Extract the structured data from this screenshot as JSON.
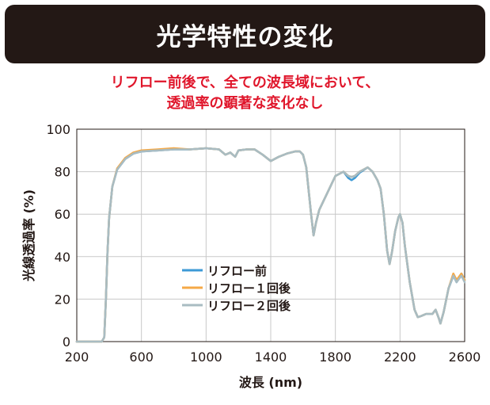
{
  "header": {
    "title": "光学特性の変化"
  },
  "subtitle": {
    "line1": "リフロー前後で、全ての波長域において、",
    "line2": "透過率の顕著な変化なし"
  },
  "colors": {
    "banner_bg": "#231815",
    "subtitle_text": "#e0162b",
    "series_before": "#3d9ad6",
    "series_one": "#f5a947",
    "series_two": "#a9bcc2"
  },
  "chart_data": {
    "type": "line",
    "title": "",
    "xlabel": "波長 (nm)",
    "ylabel": "光線透過率 (%)",
    "xlim": [
      200,
      2600
    ],
    "ylim": [
      0,
      100
    ],
    "x_ticks": [
      200,
      600,
      1000,
      1400,
      1800,
      2200,
      2600
    ],
    "y_ticks": [
      0,
      20,
      40,
      60,
      80,
      100
    ],
    "grid": true,
    "legend_position": "center-left",
    "x": [
      200,
      340,
      355,
      370,
      380,
      390,
      400,
      420,
      450,
      500,
      550,
      600,
      700,
      800,
      900,
      1000,
      1080,
      1120,
      1150,
      1180,
      1200,
      1250,
      1300,
      1350,
      1400,
      1450,
      1500,
      1550,
      1580,
      1600,
      1620,
      1650,
      1665,
      1680,
      1700,
      1750,
      1800,
      1850,
      1880,
      1900,
      1920,
      1950,
      2000,
      2030,
      2060,
      2080,
      2100,
      2120,
      2135,
      2150,
      2170,
      2190,
      2200,
      2215,
      2230,
      2260,
      2290,
      2310,
      2330,
      2360,
      2400,
      2420,
      2440,
      2450,
      2470,
      2500,
      2530,
      2550,
      2580,
      2600
    ],
    "series": [
      {
        "name": "リフロー前",
        "values": [
          0,
          0,
          0,
          2,
          20,
          42,
          58,
          73,
          81,
          86,
          88.5,
          89.5,
          90,
          90.5,
          90.5,
          91,
          90.5,
          88,
          89,
          87,
          90,
          90.5,
          90.5,
          88,
          85,
          87,
          88.5,
          89.5,
          89.5,
          88,
          82,
          60,
          50,
          56,
          62,
          70,
          78,
          80,
          77,
          76,
          77,
          79.5,
          82,
          80,
          76,
          72,
          60,
          43,
          36.5,
          42,
          52,
          58.5,
          60,
          56,
          45,
          28,
          15,
          11.5,
          12,
          13,
          13,
          15,
          11,
          8.5,
          14,
          25,
          31,
          28,
          32,
          29
        ]
      },
      {
        "name": "リフロー１回後",
        "values": [
          0,
          0,
          0,
          2,
          20,
          42,
          58,
          73,
          81.5,
          86.5,
          89,
          90,
          90.5,
          91,
          90.5,
          91,
          90.5,
          88,
          89,
          87,
          90,
          90.5,
          90.5,
          88,
          85,
          87,
          88.5,
          89.5,
          89.5,
          88,
          82,
          60,
          50,
          56,
          62,
          70,
          78,
          80,
          78,
          77.5,
          78,
          80,
          82,
          80,
          76,
          72,
          60,
          43,
          36.5,
          42,
          52,
          58.5,
          60,
          56,
          45,
          28,
          15,
          11.5,
          12,
          13,
          13,
          15,
          11,
          8.5,
          14,
          25,
          32,
          29,
          32,
          29
        ]
      },
      {
        "name": "リフロー２回後",
        "values": [
          0,
          0,
          0,
          2,
          20,
          42,
          58,
          73,
          81,
          86,
          88.5,
          89.5,
          90,
          90.5,
          90.5,
          91,
          90.5,
          88,
          89,
          87,
          90,
          90.5,
          90.5,
          88,
          85,
          87,
          88.5,
          89.5,
          89.5,
          88,
          82,
          60,
          50,
          56,
          62,
          70,
          78,
          80,
          78,
          77.5,
          78,
          80,
          82,
          80,
          76,
          72,
          60,
          43,
          36.5,
          42,
          52,
          58.5,
          60,
          56,
          45,
          28,
          15,
          11.5,
          12,
          13,
          13,
          15,
          11,
          8.5,
          14,
          25,
          31,
          28,
          31,
          28
        ]
      }
    ]
  }
}
